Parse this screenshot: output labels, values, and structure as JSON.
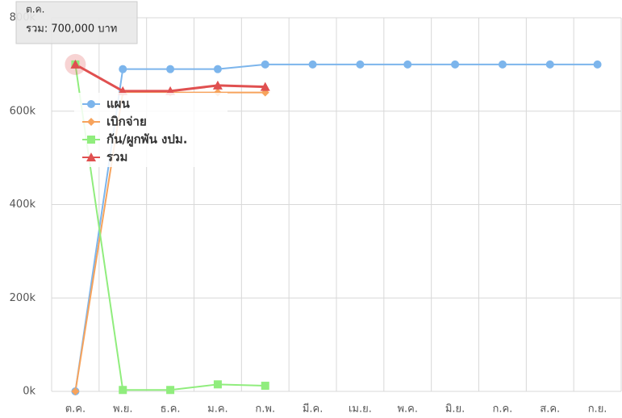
{
  "chart_data": {
    "type": "line",
    "categories": [
      "ต.ค.",
      "พ.ย.",
      "ธ.ค.",
      "ม.ค.",
      "ก.พ.",
      "มี.ค.",
      "เม.ย.",
      "พ.ค.",
      "มิ.ย.",
      "ก.ค.",
      "ส.ค.",
      "ก.ย."
    ],
    "series": [
      {
        "name": "แผน",
        "color": "#7cb5ec",
        "marker": "circle",
        "values": [
          0,
          690000,
          690000,
          690000,
          700000,
          700000,
          700000,
          700000,
          700000,
          700000,
          700000,
          700000
        ]
      },
      {
        "name": "เบิกจ่าย",
        "color": "#f7a35c",
        "marker": "diamond",
        "values": [
          0,
          640000,
          640000,
          640000,
          640000,
          null,
          null,
          null,
          null,
          null,
          null,
          null
        ]
      },
      {
        "name": "กัน/ผูกพัน งปม.",
        "color": "#90ed7d",
        "marker": "square",
        "values": [
          700000,
          3000,
          3000,
          15000,
          12000,
          null,
          null,
          null,
          null,
          null,
          null,
          null
        ]
      },
      {
        "name": "รวม",
        "color": "#e05050",
        "marker": "triangle",
        "values": [
          700000,
          643000,
          643000,
          655000,
          652000,
          null,
          null,
          null,
          null,
          null,
          null,
          null
        ]
      }
    ],
    "ylim": [
      0,
      800000
    ],
    "yticks": [
      {
        "value": 0,
        "label": "0k"
      },
      {
        "value": 200000,
        "label": "200k"
      },
      {
        "value": 400000,
        "label": "400k"
      },
      {
        "value": 600000,
        "label": "600k"
      },
      {
        "value": 800000,
        "label": "800k"
      }
    ],
    "grid": true,
    "tooltip": {
      "title": "ต.ค.",
      "text": "รวม: 700,000 บาท"
    }
  }
}
